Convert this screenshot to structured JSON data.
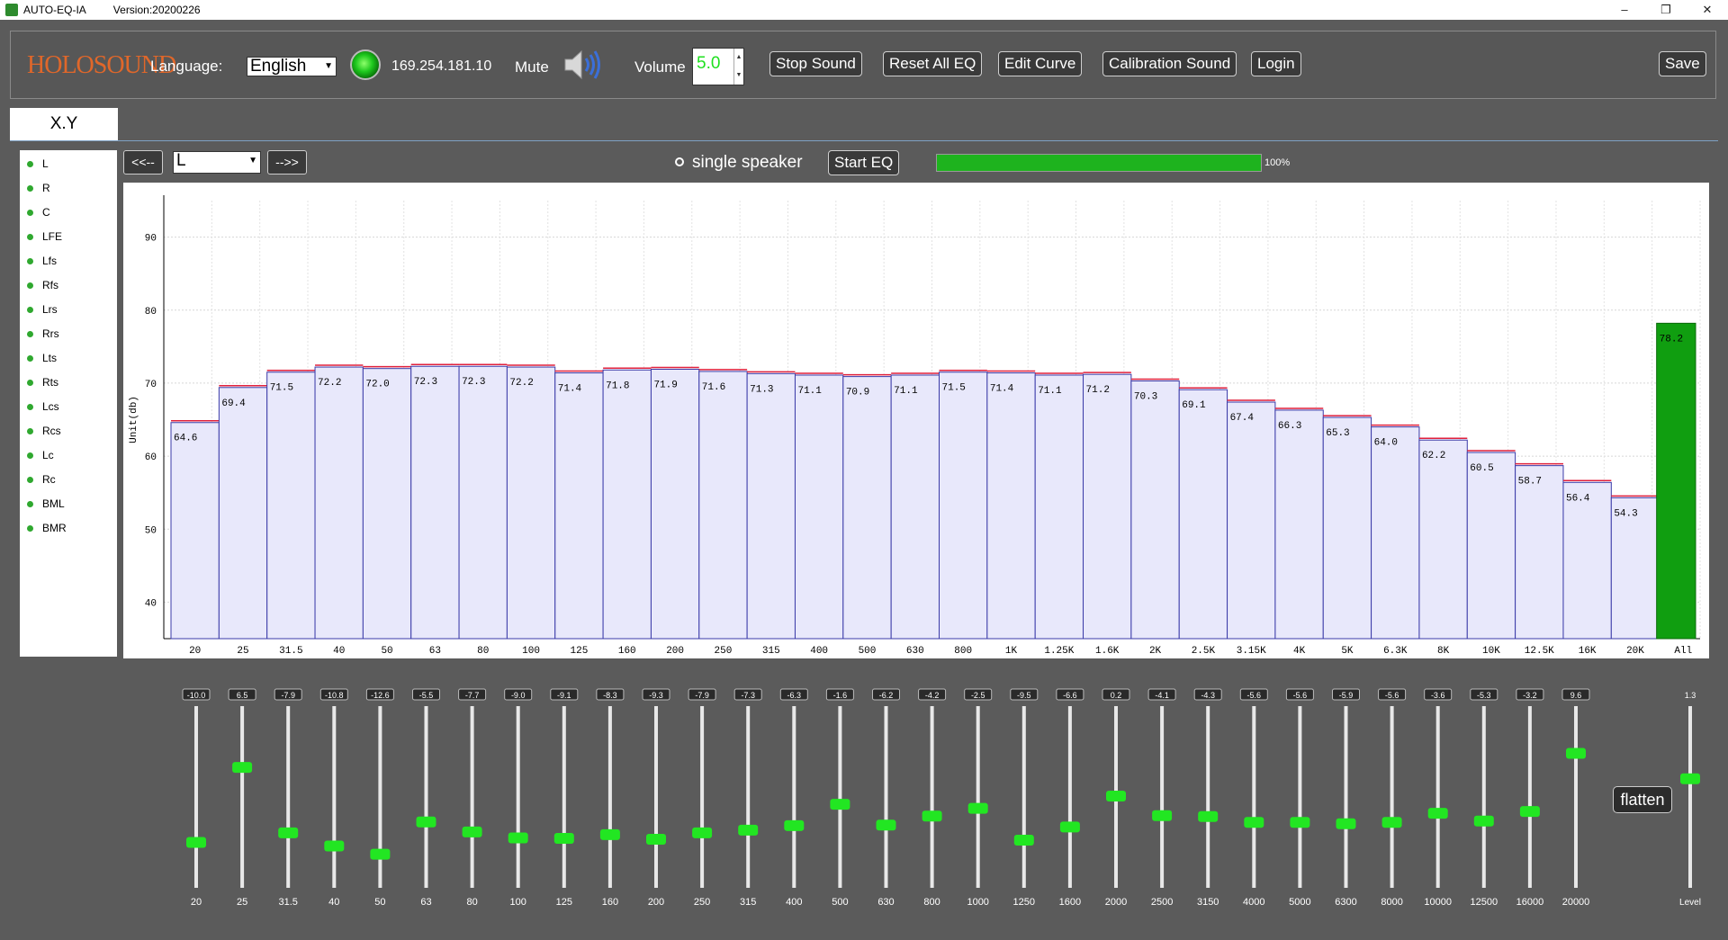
{
  "window": {
    "app_name": "AUTO-EQ-IA",
    "version": "Version:20200226",
    "min": "–",
    "max": "❐",
    "close": "✕"
  },
  "topbar": {
    "logo": "HOLOSOUND",
    "language_label": "Language:",
    "language_value": "English",
    "ip": "169.254.181.10",
    "mute_label": "Mute",
    "volume_label": "Volume",
    "volume_value": "5.0",
    "stop_sound": "Stop Sound",
    "reset_all_eq": "Reset All EQ",
    "edit_curve": "Edit Curve",
    "calibration_sound": "Calibration Sound",
    "login": "Login",
    "save": "Save"
  },
  "tab": "X.Y",
  "channels": [
    "L",
    "R",
    "C",
    "LFE",
    "Lfs",
    "Rfs",
    "Lrs",
    "Rrs",
    "Lts",
    "Rts",
    "Lcs",
    "Rcs",
    "Lc",
    "Rc",
    "BML",
    "BMR"
  ],
  "controls": {
    "prev": "<<--",
    "next": "-->>",
    "channel_value": "L",
    "single_speaker": "single speaker",
    "start_eq": "Start EQ",
    "progress_text": "100%",
    "progress_value": 100
  },
  "chart_data": {
    "type": "bar",
    "ylabel": "Unit(db)",
    "ylim": [
      35,
      95
    ],
    "yticks": [
      40,
      50,
      60,
      70,
      80,
      90
    ],
    "grid": true,
    "categories": [
      "20",
      "25",
      "31.5",
      "40",
      "50",
      "63",
      "80",
      "100",
      "125",
      "160",
      "200",
      "250",
      "315",
      "400",
      "500",
      "630",
      "800",
      "1K",
      "1.25K",
      "1.6K",
      "2K",
      "2.5K",
      "3.15K",
      "4K",
      "5K",
      "6.3K",
      "8K",
      "10K",
      "12.5K",
      "16K",
      "20K",
      "All"
    ],
    "values": [
      64.6,
      69.4,
      71.5,
      72.2,
      72.0,
      72.3,
      72.3,
      72.2,
      71.4,
      71.8,
      71.9,
      71.6,
      71.3,
      71.1,
      70.9,
      71.1,
      71.5,
      71.4,
      71.1,
      71.2,
      70.3,
      69.1,
      67.4,
      66.3,
      65.3,
      64.0,
      62.2,
      60.5,
      58.7,
      56.4,
      54.3,
      78.2
    ],
    "bar_color": "#e8e8fb",
    "bar_edge": "#3a3aa8",
    "curve_color": "#e0203c",
    "all_color": "#109e10"
  },
  "eq": {
    "bands": [
      "20",
      "25",
      "31.5",
      "40",
      "50",
      "63",
      "80",
      "100",
      "125",
      "160",
      "200",
      "250",
      "315",
      "400",
      "500",
      "630",
      "800",
      "1000",
      "1250",
      "1600",
      "2000",
      "2500",
      "3150",
      "4000",
      "5000",
      "6300",
      "8000",
      "10000",
      "12500",
      "16000",
      "20000"
    ],
    "gains": [
      "-10.0",
      "6.5",
      "-7.9",
      "-10.8",
      "-12.6",
      "-5.5",
      "-7.7",
      "-9.0",
      "-9.1",
      "-8.3",
      "-9.3",
      "-7.9",
      "-7.3",
      "-6.3",
      "-1.6",
      "-6.2",
      "-4.2",
      "-2.5",
      "-9.5",
      "-6.6",
      "0.2",
      "-4.1",
      "-4.3",
      "-5.6",
      "-5.6",
      "-5.9",
      "-5.6",
      "-3.6",
      "-5.3",
      "-3.2",
      "9.6"
    ],
    "gain_min": -20,
    "gain_max": 20,
    "flatten": "flatten",
    "level_label": "Level",
    "level_value": "1.3",
    "level_fraction": 0.6
  }
}
